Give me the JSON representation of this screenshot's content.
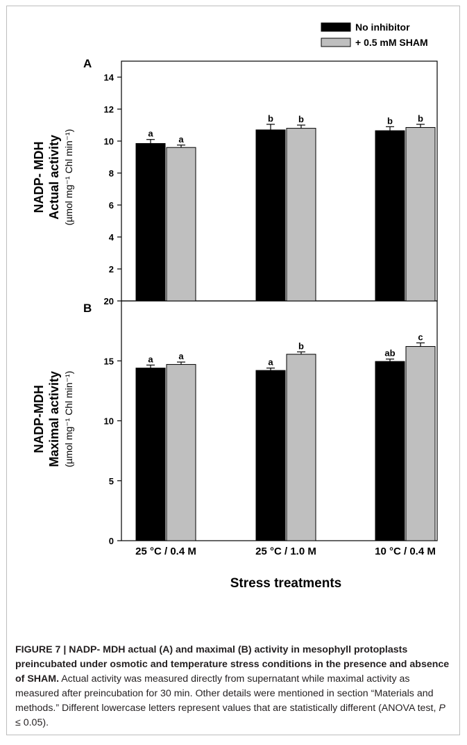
{
  "chart_data": [
    {
      "type": "bar",
      "panel_label": "A",
      "categories": [
        "25 °C / 0.4 M",
        "25 °C / 1.0 M",
        "10 °C / 0.4 M"
      ],
      "series": [
        {
          "name": "No inhibitor",
          "color": "#000000",
          "values": [
            9.85,
            10.7,
            10.65
          ],
          "errors": [
            0.25,
            0.35,
            0.25
          ],
          "letters": [
            "a",
            "b",
            "b"
          ]
        },
        {
          "name": "+ 0.5 mM SHAM",
          "color": "#bfbfbf",
          "values": [
            9.6,
            10.8,
            10.85
          ],
          "errors": [
            0.15,
            0.2,
            0.2
          ],
          "letters": [
            "a",
            "b",
            "b"
          ]
        }
      ],
      "ylabel_line1": "NADP- MDH",
      "ylabel_line2": "Actual activity",
      "ylabel_unit": "(µmol mg⁻¹ Chl min⁻¹)",
      "ylim": [
        0,
        15
      ],
      "yticks": [
        2,
        4,
        6,
        8,
        10,
        12,
        14
      ],
      "grid": false
    },
    {
      "type": "bar",
      "panel_label": "B",
      "categories": [
        "25 °C / 0.4 M",
        "25 °C / 1.0 M",
        "10 °C / 0.4 M"
      ],
      "series": [
        {
          "name": "No inhibitor",
          "color": "#000000",
          "values": [
            14.4,
            14.2,
            14.95
          ],
          "errors": [
            0.25,
            0.2,
            0.2
          ],
          "letters": [
            "a",
            "a",
            "ab"
          ]
        },
        {
          "name": "+ 0.5 mM SHAM",
          "color": "#bfbfbf",
          "values": [
            14.7,
            15.55,
            16.2
          ],
          "errors": [
            0.2,
            0.2,
            0.3
          ],
          "letters": [
            "a",
            "b",
            "c"
          ]
        }
      ],
      "ylabel_line1": "NADP-MDH",
      "ylabel_line2": "Maximal activity",
      "ylabel_unit": "(µmol mg⁻¹ Chl min⁻¹)",
      "ylim": [
        0,
        20
      ],
      "yticks": [
        0,
        5,
        10,
        15,
        20
      ],
      "xlabel": "Stress treatments",
      "grid": false
    }
  ],
  "legend": {
    "placement": "top-right",
    "entries": [
      "No inhibitor",
      "+ 0.5 mM SHAM"
    ]
  },
  "caption": {
    "bold": "FIGURE 7 | NADP- MDH actual (A) and maximal (B) activity in mesophyll protoplasts preincubated under osmotic and temperature stress conditions in the presence and absence of SHAM.",
    "body": " Actual activity was measured directly from supernatant while maximal activity as measured after preincubation for 30 min. Other details were mentioned in section “Materials and methods.” Different lowercase letters represent values that are statistically different (ANOVA test, ",
    "p_symbol": "P",
    "tail": " ≤ 0.05)."
  }
}
